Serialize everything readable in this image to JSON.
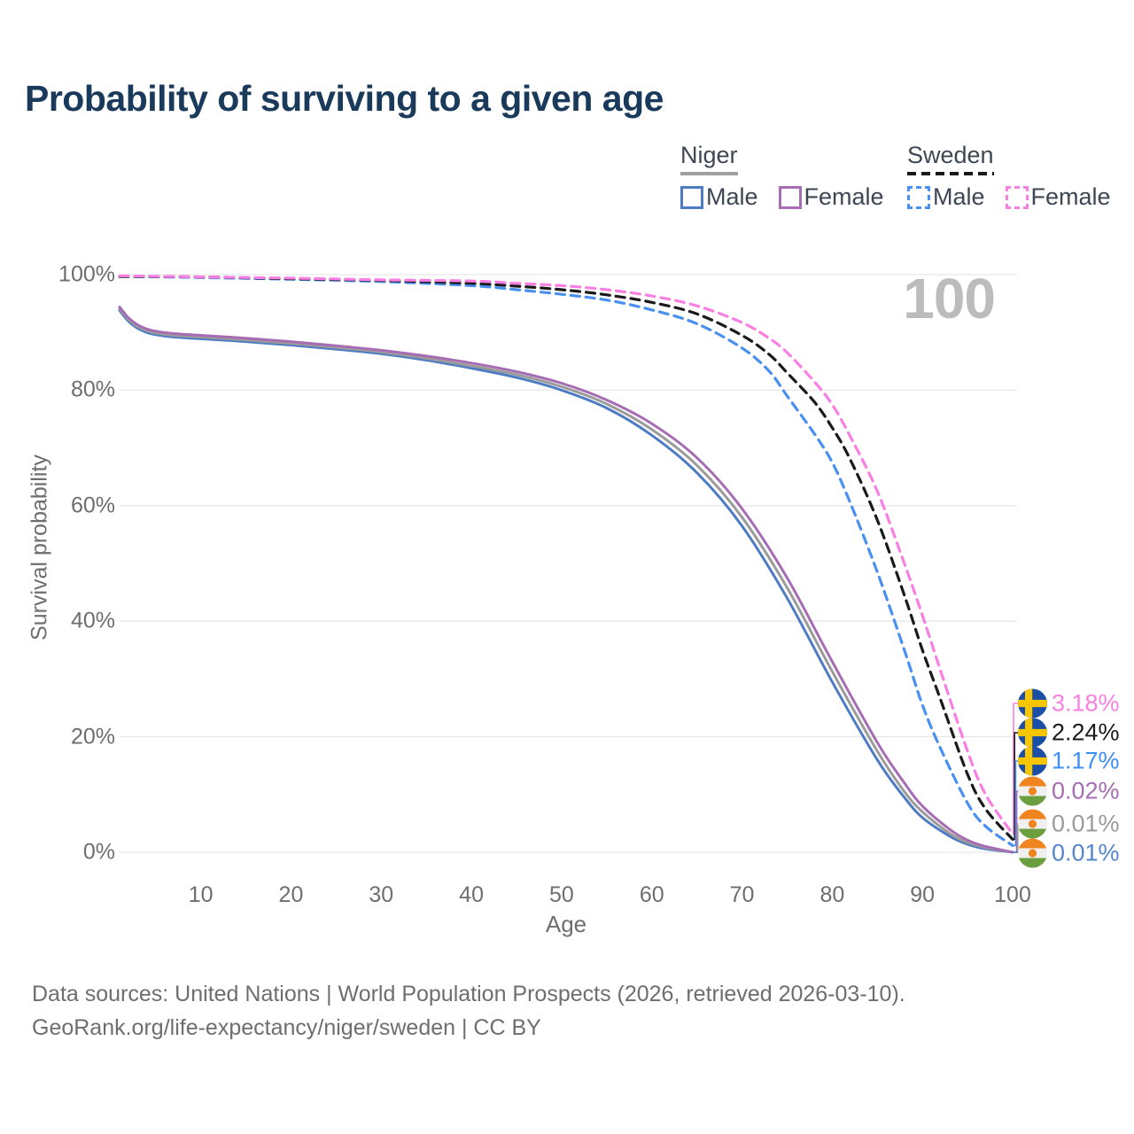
{
  "title": "Probability of surviving to a given age",
  "age_counter": "100",
  "colors": {
    "title": "#1a3a5c",
    "legend_text": "#3d4754",
    "axis_text": "#6e6e6e",
    "footer_text": "#6e6e6e",
    "gridline": "#e8e8e8",
    "watermark": "#bcbcbc"
  },
  "legend": {
    "groups": [
      {
        "label": "Niger",
        "style": "solid",
        "underline_color": "#a0a0a0",
        "items": [
          {
            "label": "Male",
            "color": "#4e7cc4",
            "dashed": false
          },
          {
            "label": "Female",
            "color": "#a76db4",
            "dashed": false
          }
        ]
      },
      {
        "label": "Sweden",
        "style": "dashed",
        "underline_color": "#1a1a1a",
        "items": [
          {
            "label": "Male",
            "color": "#4a90f0",
            "dashed": true
          },
          {
            "label": "Female",
            "color": "#fa7fe2",
            "dashed": true
          }
        ]
      }
    ]
  },
  "flags": {
    "sweden": {
      "background": "#1b4fa5",
      "cross": "#f7c600"
    },
    "niger": {
      "top": "#f0841f",
      "middle": "#f0f0f0",
      "bottom": "#6a9e3f",
      "dot": "#f0841f"
    }
  },
  "chart_data": {
    "type": "line",
    "title": "Probability of surviving to a given age",
    "xlabel": "Age",
    "ylabel": "Survival probability",
    "xlim": [
      1,
      100
    ],
    "ylim": [
      0,
      100
    ],
    "x_ticks": [
      10,
      20,
      30,
      40,
      50,
      60,
      70,
      80,
      90,
      100
    ],
    "y_ticks": [
      0,
      20,
      40,
      60,
      80,
      100
    ],
    "y_tick_suffix": "%",
    "grid": "horizontal",
    "legend_position": "top-right",
    "series": [
      {
        "id": "niger-male",
        "name": "Niger Male",
        "country": "Niger",
        "sex": "male",
        "color": "#4e7cc4",
        "dashed": false,
        "end_value": 0.01,
        "points": [
          [
            1,
            93.8
          ],
          [
            1.5,
            92.8
          ],
          [
            2,
            91.9
          ],
          [
            3,
            90.7
          ],
          [
            4,
            90.0
          ],
          [
            5,
            89.6
          ],
          [
            7,
            89.2
          ],
          [
            10,
            88.9
          ],
          [
            15,
            88.4
          ],
          [
            20,
            87.8
          ],
          [
            25,
            87.1
          ],
          [
            30,
            86.3
          ],
          [
            35,
            85.2
          ],
          [
            40,
            83.8
          ],
          [
            45,
            82.2
          ],
          [
            50,
            80.0
          ],
          [
            55,
            76.9
          ],
          [
            60,
            72.2
          ],
          [
            65,
            65.7
          ],
          [
            70,
            56.5
          ],
          [
            75,
            44.0
          ],
          [
            80,
            29.5
          ],
          [
            85,
            16.0
          ],
          [
            88,
            9.5
          ],
          [
            90,
            6.0
          ],
          [
            93,
            2.8
          ],
          [
            95,
            1.4
          ],
          [
            97,
            0.6
          ],
          [
            100,
            0.01
          ]
        ]
      },
      {
        "id": "niger-all",
        "name": "Niger",
        "country": "Niger",
        "sex": "all",
        "color": "#9b9b9b",
        "dashed": false,
        "end_value": 0.01,
        "points": [
          [
            1,
            94.1
          ],
          [
            1.5,
            93.1
          ],
          [
            2,
            92.2
          ],
          [
            3,
            91.0
          ],
          [
            4,
            90.3
          ],
          [
            5,
            89.9
          ],
          [
            7,
            89.5
          ],
          [
            10,
            89.2
          ],
          [
            15,
            88.7
          ],
          [
            20,
            88.1
          ],
          [
            25,
            87.4
          ],
          [
            30,
            86.6
          ],
          [
            35,
            85.5
          ],
          [
            40,
            84.2
          ],
          [
            45,
            82.7
          ],
          [
            50,
            80.6
          ],
          [
            55,
            77.6
          ],
          [
            60,
            73.2
          ],
          [
            65,
            67.0
          ],
          [
            70,
            58.0
          ],
          [
            75,
            45.8
          ],
          [
            80,
            31.3
          ],
          [
            85,
            17.5
          ],
          [
            88,
            10.5
          ],
          [
            90,
            7.0
          ],
          [
            93,
            3.3
          ],
          [
            95,
            1.7
          ],
          [
            97,
            0.8
          ],
          [
            100,
            0.01
          ]
        ]
      },
      {
        "id": "niger-female",
        "name": "Niger Female",
        "country": "Niger",
        "sex": "female",
        "color": "#a76db4",
        "dashed": false,
        "end_value": 0.02,
        "points": [
          [
            1,
            94.4
          ],
          [
            1.5,
            93.4
          ],
          [
            2,
            92.5
          ],
          [
            3,
            91.3
          ],
          [
            4,
            90.6
          ],
          [
            5,
            90.2
          ],
          [
            7,
            89.8
          ],
          [
            10,
            89.5
          ],
          [
            15,
            89.0
          ],
          [
            20,
            88.4
          ],
          [
            25,
            87.7
          ],
          [
            30,
            86.9
          ],
          [
            35,
            85.9
          ],
          [
            40,
            84.7
          ],
          [
            45,
            83.2
          ],
          [
            50,
            81.2
          ],
          [
            55,
            78.3
          ],
          [
            60,
            74.2
          ],
          [
            65,
            68.3
          ],
          [
            70,
            59.5
          ],
          [
            75,
            47.5
          ],
          [
            80,
            33.0
          ],
          [
            85,
            19.0
          ],
          [
            88,
            12.0
          ],
          [
            90,
            8.0
          ],
          [
            93,
            4.0
          ],
          [
            95,
            2.1
          ],
          [
            97,
            1.0
          ],
          [
            100,
            0.02
          ]
        ]
      },
      {
        "id": "sweden-male",
        "name": "Sweden Male",
        "country": "Sweden",
        "sex": "male",
        "color": "#4a90f0",
        "dashed": true,
        "end_value": 1.17,
        "points": [
          [
            1,
            99.7
          ],
          [
            10,
            99.5
          ],
          [
            20,
            99.2
          ],
          [
            30,
            98.8
          ],
          [
            40,
            98.1
          ],
          [
            45,
            97.4
          ],
          [
            50,
            96.6
          ],
          [
            55,
            95.6
          ],
          [
            60,
            93.9
          ],
          [
            65,
            91.5
          ],
          [
            70,
            87.3
          ],
          [
            73,
            83.3
          ],
          [
            75,
            79.0
          ],
          [
            78,
            72.5
          ],
          [
            80,
            67.5
          ],
          [
            82,
            60.5
          ],
          [
            85,
            48.5
          ],
          [
            88,
            35.0
          ],
          [
            90,
            25.5
          ],
          [
            92,
            18.0
          ],
          [
            95,
            8.5
          ],
          [
            97,
            4.5
          ],
          [
            100,
            1.17
          ]
        ]
      },
      {
        "id": "sweden-all",
        "name": "Sweden",
        "country": "Sweden",
        "sex": "all",
        "color": "#1a1a1a",
        "dashed": true,
        "end_value": 2.24,
        "points": [
          [
            1,
            99.7
          ],
          [
            10,
            99.6
          ],
          [
            20,
            99.3
          ],
          [
            30,
            99.0
          ],
          [
            40,
            98.5
          ],
          [
            45,
            98.0
          ],
          [
            50,
            97.4
          ],
          [
            55,
            96.5
          ],
          [
            60,
            95.2
          ],
          [
            65,
            93.2
          ],
          [
            70,
            89.5
          ],
          [
            73,
            86.2
          ],
          [
            75,
            83.0
          ],
          [
            78,
            78.0
          ],
          [
            80,
            73.5
          ],
          [
            82,
            68.0
          ],
          [
            85,
            57.5
          ],
          [
            88,
            44.5
          ],
          [
            90,
            35.0
          ],
          [
            92,
            26.5
          ],
          [
            95,
            13.5
          ],
          [
            97,
            7.5
          ],
          [
            100,
            2.24
          ]
        ]
      },
      {
        "id": "sweden-female",
        "name": "Sweden Female",
        "country": "Sweden",
        "sex": "female",
        "color": "#fa7fe2",
        "dashed": true,
        "end_value": 3.18,
        "points": [
          [
            1,
            99.8
          ],
          [
            10,
            99.6
          ],
          [
            20,
            99.4
          ],
          [
            30,
            99.1
          ],
          [
            40,
            98.9
          ],
          [
            45,
            98.5
          ],
          [
            50,
            98.1
          ],
          [
            55,
            97.4
          ],
          [
            60,
            96.3
          ],
          [
            65,
            94.6
          ],
          [
            70,
            91.7
          ],
          [
            73,
            89.0
          ],
          [
            75,
            86.5
          ],
          [
            78,
            81.5
          ],
          [
            80,
            77.5
          ],
          [
            82,
            72.0
          ],
          [
            85,
            62.5
          ],
          [
            88,
            50.0
          ],
          [
            90,
            41.0
          ],
          [
            92,
            31.5
          ],
          [
            95,
            17.5
          ],
          [
            97,
            10.0
          ],
          [
            100,
            3.18
          ]
        ]
      }
    ]
  },
  "end_labels": [
    {
      "series": "sweden-female",
      "flag": "sweden",
      "value": "3.18%",
      "color": "#fa7fe2"
    },
    {
      "series": "sweden-all",
      "flag": "sweden",
      "value": "2.24%",
      "color": "#1a1a1a"
    },
    {
      "series": "sweden-male",
      "flag": "sweden",
      "value": "1.17%",
      "color": "#3e8ef7"
    },
    {
      "series": "niger-female",
      "flag": "niger",
      "value": "0.02%",
      "color": "#a76db4"
    },
    {
      "series": "niger-all",
      "flag": "niger",
      "value": "0.01%",
      "color": "#9b9b9b"
    },
    {
      "series": "niger-male",
      "flag": "niger",
      "value": "0.01%",
      "color": "#5585cc"
    }
  ],
  "footer": {
    "line1": "Data sources: United Nations | World Population Prospects (2026, retrieved 2026-03-10).",
    "line2": "GeoRank.org/life-expectancy/niger/sweden | CC BY"
  }
}
